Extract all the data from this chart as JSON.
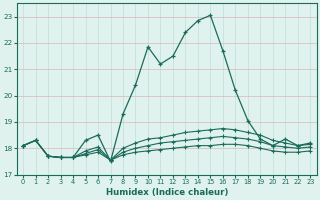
{
  "xlabel": "Humidex (Indice chaleur)",
  "bg_color": "#dff2ee",
  "grid_color": "#c8e8e0",
  "line_color": "#1a6b5a",
  "xlim": [
    -0.5,
    23.5
  ],
  "ylim": [
    17.0,
    23.5
  ],
  "yticks": [
    17,
    18,
    19,
    20,
    21,
    22,
    23
  ],
  "xticks": [
    0,
    1,
    2,
    3,
    4,
    5,
    6,
    7,
    8,
    9,
    10,
    11,
    12,
    13,
    14,
    15,
    16,
    17,
    18,
    19,
    20,
    21,
    22,
    23
  ],
  "series": [
    [
      18.1,
      18.3,
      17.7,
      17.65,
      17.65,
      18.3,
      18.5,
      17.5,
      19.3,
      20.4,
      21.85,
      21.2,
      21.5,
      22.4,
      22.85,
      23.05,
      21.7,
      20.2,
      19.05,
      18.35,
      18.1,
      18.35,
      18.1,
      18.2
    ],
    [
      18.1,
      18.3,
      17.7,
      17.65,
      17.65,
      17.9,
      18.05,
      17.55,
      18.0,
      18.2,
      18.35,
      18.4,
      18.5,
      18.6,
      18.65,
      18.7,
      18.75,
      18.7,
      18.6,
      18.5,
      18.3,
      18.2,
      18.1,
      18.15
    ],
    [
      18.1,
      18.3,
      17.7,
      17.65,
      17.65,
      17.75,
      17.85,
      17.55,
      17.75,
      17.85,
      17.9,
      17.95,
      18.0,
      18.05,
      18.1,
      18.1,
      18.15,
      18.15,
      18.1,
      18.0,
      17.9,
      17.85,
      17.85,
      17.9
    ],
    [
      18.1,
      18.3,
      17.7,
      17.65,
      17.65,
      17.8,
      17.95,
      17.55,
      17.85,
      18.0,
      18.1,
      18.2,
      18.25,
      18.3,
      18.35,
      18.4,
      18.45,
      18.4,
      18.35,
      18.25,
      18.1,
      18.05,
      18.0,
      18.05
    ]
  ]
}
